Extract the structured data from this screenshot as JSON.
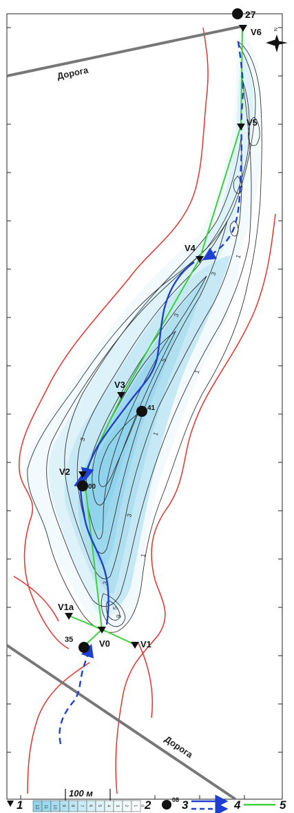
{
  "map": {
    "roads": [
      {
        "label": "Дорога"
      },
      {
        "label": "Дорога"
      }
    ],
    "stations": [
      {
        "label": "V6"
      },
      {
        "label": "V5"
      },
      {
        "label": "V4"
      },
      {
        "label": "V3"
      },
      {
        "label": "V2"
      },
      {
        "label": "V1a"
      },
      {
        "label": "V0"
      },
      {
        "label": "V1"
      }
    ],
    "wells": [
      {
        "label": "27"
      },
      {
        "label": "41"
      },
      {
        "label": "00"
      },
      {
        "label": "35"
      }
    ],
    "contour_labels": [
      "1",
      "3",
      "3",
      "5",
      "1",
      "1",
      "3",
      "3",
      "1",
      "3",
      "5",
      "9"
    ],
    "north_arrow": {
      "label": "N"
    },
    "scale_bar": {
      "label": "100 м"
    }
  },
  "legend": {
    "items": [
      {
        "number": "1",
        "symbol": "triangle-station-icon"
      },
      {
        "number": "2",
        "symbol": "depth-color-scale"
      },
      {
        "number": "3",
        "symbol": "well-dot-icon",
        "sample_label": "08"
      },
      {
        "number": "4",
        "symbol": "blue-flow-arrow"
      },
      {
        "number": "5",
        "symbol": "green-line"
      }
    ],
    "scale_ticks": [
      "0",
      "1",
      "2",
      "3",
      "4",
      "5",
      "6",
      "7",
      "8",
      "9",
      "10",
      "11",
      "12"
    ]
  },
  "colors": {
    "outline": "#e8302a",
    "contour": "#333333",
    "flow": "#1f3fd1",
    "profile": "#3ad13a",
    "water_light": "#eaf6fb",
    "water_dark": "#8fd3ec",
    "road": "#777777"
  }
}
